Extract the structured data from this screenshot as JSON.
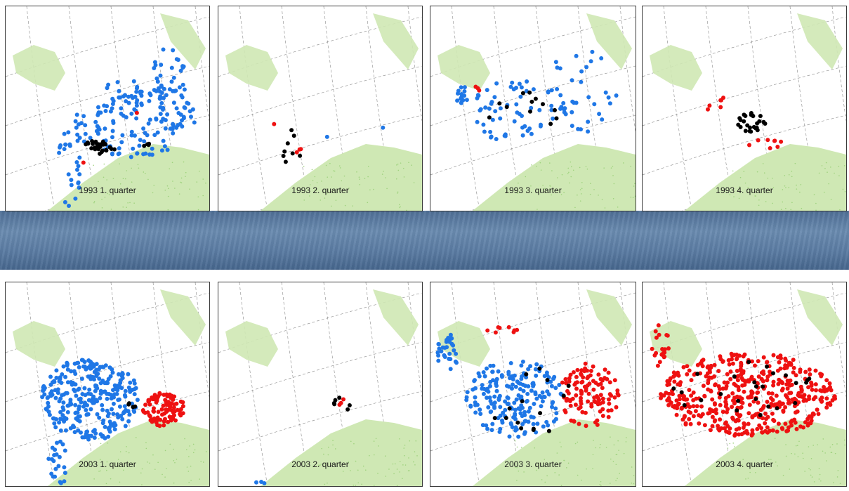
{
  "colors": {
    "land": "#cfe8b4",
    "land_dots": "#9fd27e",
    "blue": "#1f77e6",
    "red": "#ee1111",
    "black": "#000000",
    "grid": "#8a8a8a"
  },
  "rows": [
    {
      "year": "1993",
      "panels": [
        {
          "label": "1993 1. quarter",
          "scheme": "p93q1"
        },
        {
          "label": "1993 2. quarter",
          "scheme": "p93q2"
        },
        {
          "label": "1993 3. quarter",
          "scheme": "p93q3"
        },
        {
          "label": "1993 4. quarter",
          "scheme": "p93q4"
        }
      ]
    },
    {
      "year": "2003",
      "panels": [
        {
          "label": "2003 1. quarter",
          "scheme": "p03q1"
        },
        {
          "label": "2003 2. quarter",
          "scheme": "p03q2"
        },
        {
          "label": "2003 3. quarter",
          "scheme": "p03q3"
        },
        {
          "label": "2003 4. quarter",
          "scheme": "p03q4"
        }
      ]
    }
  ]
}
